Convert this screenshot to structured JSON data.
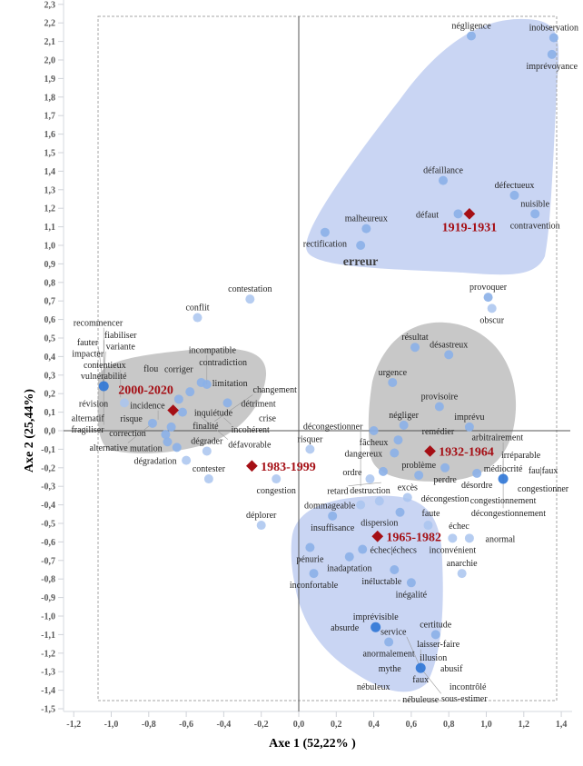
{
  "chart_data": {
    "type": "scatter",
    "title": "",
    "xlabel": "Axe 1 (52,22% )",
    "ylabel": "Axe 2 (25,44%)",
    "xlim": [
      -1.2,
      1.4
    ],
    "ylim": [
      -1.5,
      2.3
    ],
    "x_ticks": [
      "-1,2",
      "-1,0",
      "-0,8",
      "-0,6",
      "-0,4",
      "-0,2",
      "0,0",
      "0,2",
      "0,4",
      "0,6",
      "0,8",
      "1,0",
      "1,2",
      "1,4"
    ],
    "y_ticks": [
      "2,3",
      "2,2",
      "2,1",
      "2,0",
      "1,9",
      "1,8",
      "1,7",
      "1,6",
      "1,5",
      "1,4",
      "1,3",
      "1,2",
      "1,1",
      "1,0",
      "0,9",
      "0,8",
      "0,7",
      "0,6",
      "0,5",
      "0,4",
      "0,3",
      "0,2",
      "0,1",
      "0,0",
      "-0,1",
      "-0,2",
      "-0,3",
      "-0,4",
      "-0,5",
      "-0,6",
      "-0,7",
      "-0,8",
      "-0,9",
      "-1,0",
      "-1,1",
      "-1,2",
      "-1,3",
      "-1,4",
      "-1,5"
    ],
    "grid": false,
    "colors": {
      "point_light": "#a9c4ef",
      "point_medium": "#8bb0e8",
      "point_dark": "#2e75d6",
      "period_marker": "#a50f15",
      "cluster_blue": "#c9d5f3",
      "cluster_gray": "#c8c8c8"
    },
    "clusters": [
      {
        "name": "1919-1931",
        "color": "blue"
      },
      {
        "name": "2000-2020",
        "color": "gray"
      },
      {
        "name": "1932-1964",
        "color": "gray"
      },
      {
        "name": "1965-1982",
        "color": "blue"
      }
    ],
    "periods": [
      {
        "label": "1919-1931",
        "x": 0.91,
        "y": 1.17
      },
      {
        "label": "2000-2020",
        "x": -0.67,
        "y": 0.11
      },
      {
        "label": "1932-1964",
        "x": 0.7,
        "y": -0.11
      },
      {
        "label": "1983-1999",
        "x": -0.25,
        "y": -0.19
      },
      {
        "label": "1965-1982",
        "x": 0.42,
        "y": -0.57
      }
    ],
    "points": [
      {
        "label": "négligence",
        "x": 0.92,
        "y": 2.13,
        "shade": "medium"
      },
      {
        "label": "inobservation",
        "x": 1.36,
        "y": 2.12,
        "shade": "medium"
      },
      {
        "label": "imprévoyance",
        "x": 1.35,
        "y": 2.03,
        "shade": "medium"
      },
      {
        "label": "défaillance",
        "x": 0.77,
        "y": 1.35,
        "shade": "medium"
      },
      {
        "label": "défectueux",
        "x": 1.15,
        "y": 1.27,
        "shade": "medium"
      },
      {
        "label": "défaut",
        "x": 0.85,
        "y": 1.17,
        "shade": "medium"
      },
      {
        "label": "nuisible",
        "x": 1.26,
        "y": 1.17,
        "shade": "medium"
      },
      {
        "label": "contravention",
        "x": 1.26,
        "y": 1.17,
        "shade": "none"
      },
      {
        "label": "malheureux",
        "x": 0.36,
        "y": 1.09,
        "shade": "medium"
      },
      {
        "label": "rectification",
        "x": 0.14,
        "y": 1.07,
        "shade": "medium"
      },
      {
        "label": "erreur",
        "x": 0.33,
        "y": 1.0,
        "shade": "medium",
        "big": true
      },
      {
        "label": "provoquer",
        "x": 1.01,
        "y": 0.72,
        "shade": "medium"
      },
      {
        "label": "obscur",
        "x": 1.03,
        "y": 0.66,
        "shade": "light"
      },
      {
        "label": "contestation",
        "x": -0.26,
        "y": 0.71,
        "shade": "light"
      },
      {
        "label": "conflit",
        "x": -0.54,
        "y": 0.61,
        "shade": "light"
      },
      {
        "label": "résultat",
        "x": 0.62,
        "y": 0.45,
        "shade": "medium"
      },
      {
        "label": "désastreux",
        "x": 0.8,
        "y": 0.41,
        "shade": "medium"
      },
      {
        "label": "urgence",
        "x": 0.5,
        "y": 0.26,
        "shade": "medium"
      },
      {
        "label": "provisoire",
        "x": 0.75,
        "y": 0.13,
        "shade": "medium"
      },
      {
        "label": "négliger",
        "x": 0.56,
        "y": 0.03,
        "shade": "medium"
      },
      {
        "label": "imprévu",
        "x": 0.91,
        "y": 0.02,
        "shade": "medium"
      },
      {
        "label": "fâcheux",
        "x": 0.4,
        "y": 0.0,
        "shade": "medium"
      },
      {
        "label": "remédier",
        "x": 0.53,
        "y": -0.05,
        "shade": "medium"
      },
      {
        "label": "dangereux",
        "x": 0.51,
        "y": -0.12,
        "shade": "medium"
      },
      {
        "label": "ordre",
        "x": 0.45,
        "y": -0.22,
        "shade": "medium"
      },
      {
        "label": "problème",
        "x": 0.64,
        "y": -0.24,
        "shade": "medium"
      },
      {
        "label": "perdre",
        "x": 0.78,
        "y": -0.2,
        "shade": "medium"
      },
      {
        "label": "décongestion",
        "x": 0.78,
        "y": -0.25,
        "shade": "none"
      },
      {
        "label": "désordre",
        "x": 0.95,
        "y": -0.23,
        "shade": "medium"
      },
      {
        "label": "médiocrité",
        "x": 1.09,
        "y": -0.26,
        "shade": "dark"
      },
      {
        "label": "congestionnement",
        "x": 1.09,
        "y": -0.26,
        "shade": "none"
      },
      {
        "label": "congestionner",
        "x": 1.09,
        "y": -0.26,
        "shade": "none"
      },
      {
        "label": "fau|faux",
        "x": 1.09,
        "y": -0.26,
        "shade": "none"
      },
      {
        "label": "décongestionnement",
        "x": 1.09,
        "y": -0.26,
        "shade": "none"
      },
      {
        "label": "irréparable",
        "x": 1.09,
        "y": -0.26,
        "shade": "none"
      },
      {
        "label": "arbitrairement",
        "x": 1.09,
        "y": -0.26,
        "shade": "none"
      },
      {
        "label": "destruction",
        "x": 0.38,
        "y": -0.26,
        "shade": "light"
      },
      {
        "label": "retard",
        "x": 0.44,
        "y": -0.28,
        "shade": "none"
      },
      {
        "label": "décongestionner",
        "x": 0.33,
        "y": -0.3,
        "shade": "none"
      },
      {
        "label": "excès",
        "x": 0.58,
        "y": -0.36,
        "shade": "light"
      },
      {
        "label": "dommageable",
        "x": 0.33,
        "y": -0.4,
        "shade": "light"
      },
      {
        "label": "dispersion",
        "x": 0.43,
        "y": -0.38,
        "shade": "light"
      },
      {
        "label": "faute",
        "x": 0.54,
        "y": -0.44,
        "shade": "medium"
      },
      {
        "label": "échec",
        "x": 0.69,
        "y": -0.51,
        "shade": "light"
      },
      {
        "label": "insuffisance",
        "x": 0.18,
        "y": -0.46,
        "shade": "medium"
      },
      {
        "label": "pénurie",
        "x": 0.06,
        "y": -0.63,
        "shade": "medium"
      },
      {
        "label": "inconvénient",
        "x": 0.82,
        "y": -0.58,
        "shade": "light"
      },
      {
        "label": "anormal",
        "x": 0.91,
        "y": -0.58,
        "shade": "light"
      },
      {
        "label": "anarchie",
        "x": 0.87,
        "y": -0.77,
        "shade": "light"
      },
      {
        "label": "échec|échecs",
        "x": 0.34,
        "y": -0.64,
        "shade": "medium"
      },
      {
        "label": "inadaptation",
        "x": 0.27,
        "y": -0.68,
        "shade": "medium"
      },
      {
        "label": "inconfortable",
        "x": 0.08,
        "y": -0.77,
        "shade": "medium"
      },
      {
        "label": "inéluctable",
        "x": 0.51,
        "y": -0.75,
        "shade": "medium"
      },
      {
        "label": "inégalité",
        "x": 0.6,
        "y": -0.82,
        "shade": "medium"
      },
      {
        "label": "déplorer",
        "x": -0.2,
        "y": -0.51,
        "shade": "light"
      },
      {
        "label": "risquer",
        "x": 0.06,
        "y": -0.1,
        "shade": "light"
      },
      {
        "label": "congestion",
        "x": -0.12,
        "y": -0.26,
        "shade": "light"
      },
      {
        "label": "contester",
        "x": -0.48,
        "y": -0.26,
        "shade": "light"
      },
      {
        "label": "dégrader",
        "x": -0.49,
        "y": -0.11,
        "shade": "light"
      },
      {
        "label": "dégradation",
        "x": -0.6,
        "y": -0.16,
        "shade": "light"
      },
      {
        "label": "mutation",
        "x": -0.65,
        "y": -0.09,
        "shade": "medium"
      },
      {
        "label": "correction",
        "x": -0.7,
        "y": -0.06,
        "shade": "medium"
      },
      {
        "label": "finalité",
        "x": -0.71,
        "y": -0.02,
        "shade": "medium"
      },
      {
        "label": "risque",
        "x": -0.68,
        "y": 0.02,
        "shade": "medium"
      },
      {
        "label": "alternative",
        "x": -0.78,
        "y": 0.04,
        "shade": "medium"
      },
      {
        "label": "incidence",
        "x": -0.75,
        "y": 0.06,
        "shade": "none"
      },
      {
        "label": "inquiétude",
        "x": -0.62,
        "y": 0.1,
        "shade": "medium"
      },
      {
        "label": "révision",
        "x": -0.93,
        "y": 0.15,
        "shade": "light"
      },
      {
        "label": "contentieux",
        "x": -0.95,
        "y": 0.18,
        "shade": "none"
      },
      {
        "label": "corriger",
        "x": -0.64,
        "y": 0.17,
        "shade": "medium"
      },
      {
        "label": "limitation",
        "x": -0.58,
        "y": 0.21,
        "shade": "medium"
      },
      {
        "label": "contradiction",
        "x": -0.52,
        "y": 0.26,
        "shade": "medium"
      },
      {
        "label": "incompatible",
        "x": -0.49,
        "y": 0.25,
        "shade": "medium"
      },
      {
        "label": "détriment",
        "x": -0.38,
        "y": 0.15,
        "shade": "medium"
      },
      {
        "label": "crise",
        "x": -0.38,
        "y": 0.12,
        "shade": "none"
      },
      {
        "label": "défavorable",
        "x": -0.55,
        "y": 0.1,
        "shade": "none"
      },
      {
        "label": "incohérent",
        "x": -0.4,
        "y": 0.07,
        "shade": "none"
      },
      {
        "label": "changement",
        "x": -0.45,
        "y": 0.05,
        "shade": "none"
      },
      {
        "label": "vulnérabilité",
        "x": -1.04,
        "y": 0.24,
        "shade": "dark"
      },
      {
        "label": "alternatif",
        "x": -1.04,
        "y": 0.24,
        "shade": "none"
      },
      {
        "label": "flou",
        "x": -1.04,
        "y": 0.24,
        "shade": "none"
      },
      {
        "label": "impacter",
        "x": -1.04,
        "y": 0.24,
        "shade": "none"
      },
      {
        "label": "variante",
        "x": -1.04,
        "y": 0.24,
        "shade": "none"
      },
      {
        "label": "fragiliser",
        "x": -1.04,
        "y": 0.24,
        "shade": "none"
      },
      {
        "label": "fauter",
        "x": -1.04,
        "y": 0.24,
        "shade": "none"
      },
      {
        "label": "fiabiliser",
        "x": -1.04,
        "y": 0.24,
        "shade": "none"
      },
      {
        "label": "recommencer",
        "x": -1.04,
        "y": 0.24,
        "shade": "none"
      },
      {
        "label": "imprévisible",
        "x": 0.41,
        "y": -1.06,
        "shade": "dark"
      },
      {
        "label": "absurde",
        "x": 0.41,
        "y": -1.06,
        "shade": "none"
      },
      {
        "label": "anormalement",
        "x": 0.48,
        "y": -1.14,
        "shade": "medium"
      },
      {
        "label": "certitude",
        "x": 0.73,
        "y": -1.1,
        "shade": "medium"
      },
      {
        "label": "faux",
        "x": 0.65,
        "y": -1.28,
        "shade": "dark"
      },
      {
        "label": "mythe",
        "x": 0.65,
        "y": -1.28,
        "shade": "none"
      },
      {
        "label": "abusif",
        "x": 0.65,
        "y": -1.28,
        "shade": "none"
      },
      {
        "label": "illusion",
        "x": 0.65,
        "y": -1.28,
        "shade": "none"
      },
      {
        "label": "nébuleuse",
        "x": 0.65,
        "y": -1.28,
        "shade": "none"
      },
      {
        "label": "nébuleux",
        "x": 0.65,
        "y": -1.28,
        "shade": "none"
      },
      {
        "label": "incontrôlé",
        "x": 0.65,
        "y": -1.28,
        "shade": "none"
      },
      {
        "label": "laisser-faire",
        "x": 0.65,
        "y": -1.28,
        "shade": "none"
      },
      {
        "label": "sous-estimer",
        "x": 0.65,
        "y": -1.28,
        "shade": "none"
      },
      {
        "label": "service",
        "x": 0.65,
        "y": -1.28,
        "shade": "none"
      }
    ]
  }
}
